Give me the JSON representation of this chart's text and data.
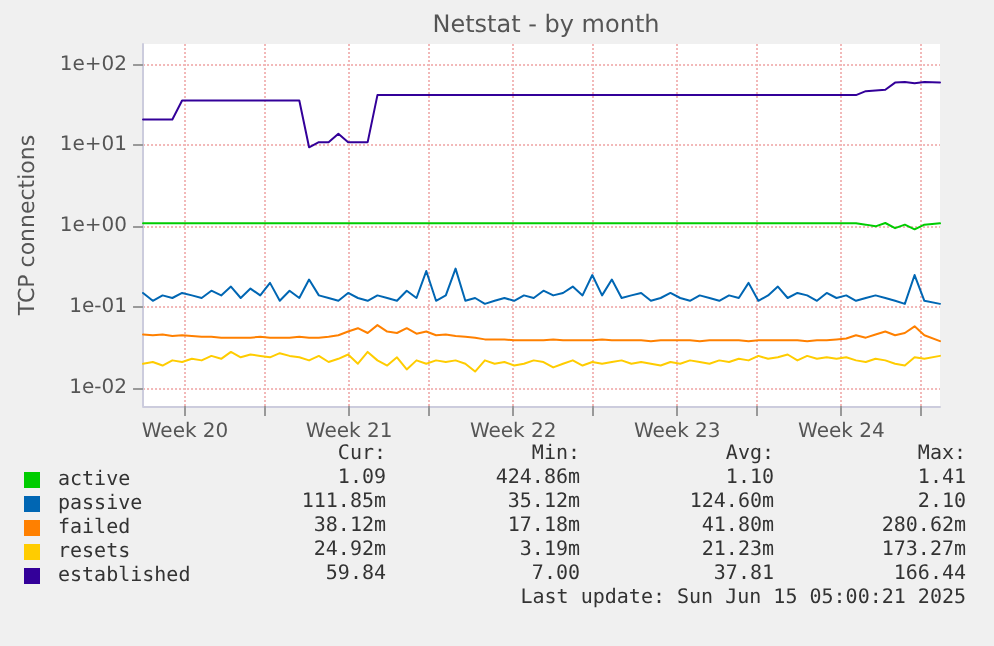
{
  "chart_data": {
    "type": "line",
    "title": "Netstat - by month",
    "ylabel": "TCP connections",
    "log": "y",
    "grid": true,
    "legend": "bottom left",
    "marker": "none",
    "line_style": "solid",
    "xlim": [
      "2025-05-12T05:00",
      "2025-06-15T05:00"
    ],
    "xticks": [
      {
        "value": "2025-05-14",
        "label": "Week 20"
      },
      {
        "value": "2025-05-17T10:00",
        "label": null
      },
      {
        "value": "2025-05-21",
        "label": "Week 21"
      },
      {
        "value": "2025-05-24T10:00",
        "label": null
      },
      {
        "value": "2025-05-28",
        "label": "Week 22"
      },
      {
        "value": "2025-05-31T10:00",
        "label": null
      },
      {
        "value": "2025-06-04",
        "label": "Week 23"
      },
      {
        "value": "2025-06-07T10:00",
        "label": null
      },
      {
        "value": "2025-06-11",
        "label": "Week 24"
      },
      {
        "value": "2025-06-14T10:00",
        "label": null
      }
    ],
    "ylim": [
      0.006,
      180
    ],
    "yticks": [
      {
        "value": 0.01,
        "label": "1e-02"
      },
      {
        "value": 0.1,
        "label": "1e-01"
      },
      {
        "value": 1,
        "label": "1e+00"
      },
      {
        "value": 10,
        "label": "1e+01"
      },
      {
        "value": 100,
        "label": "1e+02"
      }
    ],
    "x": [
      "2025-05-12T05:00",
      "2025-05-12T15:00",
      "2025-05-13T01:00",
      "2025-05-13T11:00",
      "2025-05-13T21:00",
      "2025-05-14T07:00",
      "2025-05-14T17:00",
      "2025-05-15T03:00",
      "2025-05-15T13:00",
      "2025-05-15T23:00",
      "2025-05-16T09:00",
      "2025-05-16T19:00",
      "2025-05-17T05:00",
      "2025-05-17T15:00",
      "2025-05-18T01:00",
      "2025-05-18T11:00",
      "2025-05-18T21:00",
      "2025-05-19T07:00",
      "2025-05-19T17:00",
      "2025-05-20T03:00",
      "2025-05-20T13:00",
      "2025-05-20T23:00",
      "2025-05-21T09:00",
      "2025-05-21T19:00",
      "2025-05-22T05:00",
      "2025-05-22T15:00",
      "2025-05-23T01:00",
      "2025-05-23T11:00",
      "2025-05-23T21:00",
      "2025-05-24T07:00",
      "2025-05-24T17:00",
      "2025-05-25T03:00",
      "2025-05-25T13:00",
      "2025-05-25T23:00",
      "2025-05-26T09:00",
      "2025-05-26T19:00",
      "2025-05-27T05:00",
      "2025-05-27T15:00",
      "2025-05-28T01:00",
      "2025-05-28T11:00",
      "2025-05-28T21:00",
      "2025-05-29T07:00",
      "2025-05-29T17:00",
      "2025-05-30T03:00",
      "2025-05-30T13:00",
      "2025-05-30T23:00",
      "2025-05-31T09:00",
      "2025-05-31T19:00",
      "2025-06-01T05:00",
      "2025-06-01T15:00",
      "2025-06-02T01:00",
      "2025-06-02T11:00",
      "2025-06-02T21:00",
      "2025-06-03T07:00",
      "2025-06-03T17:00",
      "2025-06-04T03:00",
      "2025-06-04T13:00",
      "2025-06-04T23:00",
      "2025-06-05T09:00",
      "2025-06-05T19:00",
      "2025-06-06T05:00",
      "2025-06-06T15:00",
      "2025-06-07T01:00",
      "2025-06-07T11:00",
      "2025-06-07T21:00",
      "2025-06-08T07:00",
      "2025-06-08T17:00",
      "2025-06-09T03:00",
      "2025-06-09T13:00",
      "2025-06-09T23:00",
      "2025-06-10T09:00",
      "2025-06-10T19:00",
      "2025-06-11T05:00",
      "2025-06-11T15:00",
      "2025-06-12T01:00",
      "2025-06-12T11:00",
      "2025-06-12T21:00",
      "2025-06-13T07:00",
      "2025-06-13T17:00",
      "2025-06-14T03:00",
      "2025-06-14T13:00",
      "2025-06-15T05:00"
    ],
    "series": [
      {
        "name": "active",
        "color": "#00cc00",
        "values": [
          1.09,
          1.09,
          1.09,
          1.09,
          1.09,
          1.09,
          1.09,
          1.09,
          1.09,
          1.09,
          1.09,
          1.09,
          1.09,
          1.09,
          1.09,
          1.09,
          1.09,
          1.09,
          1.09,
          1.09,
          1.09,
          1.09,
          1.09,
          1.09,
          1.09,
          1.09,
          1.09,
          1.09,
          1.09,
          1.09,
          1.09,
          1.09,
          1.09,
          1.09,
          1.09,
          1.09,
          1.09,
          1.09,
          1.09,
          1.09,
          1.09,
          1.09,
          1.09,
          1.09,
          1.09,
          1.09,
          1.09,
          1.09,
          1.09,
          1.09,
          1.09,
          1.09,
          1.09,
          1.09,
          1.09,
          1.09,
          1.09,
          1.09,
          1.09,
          1.09,
          1.09,
          1.09,
          1.09,
          1.09,
          1.09,
          1.09,
          1.09,
          1.09,
          1.09,
          1.09,
          1.09,
          1.09,
          1.09,
          1.09,
          1.05,
          1.0,
          1.1,
          0.95,
          1.05,
          0.92,
          1.05,
          1.09
        ]
      },
      {
        "name": "passive",
        "color": "#0066b3",
        "values": [
          0.15,
          0.12,
          0.14,
          0.13,
          0.15,
          0.14,
          0.13,
          0.16,
          0.14,
          0.18,
          0.13,
          0.17,
          0.14,
          0.2,
          0.12,
          0.16,
          0.13,
          0.22,
          0.14,
          0.13,
          0.12,
          0.15,
          0.13,
          0.12,
          0.14,
          0.13,
          0.12,
          0.16,
          0.13,
          0.28,
          0.12,
          0.14,
          0.3,
          0.12,
          0.13,
          0.11,
          0.12,
          0.13,
          0.12,
          0.14,
          0.13,
          0.16,
          0.14,
          0.15,
          0.18,
          0.14,
          0.25,
          0.14,
          0.22,
          0.13,
          0.14,
          0.15,
          0.12,
          0.13,
          0.15,
          0.13,
          0.12,
          0.14,
          0.13,
          0.12,
          0.14,
          0.13,
          0.2,
          0.12,
          0.14,
          0.18,
          0.13,
          0.15,
          0.14,
          0.12,
          0.15,
          0.13,
          0.14,
          0.12,
          0.13,
          0.14,
          0.13,
          0.12,
          0.11,
          0.25,
          0.12,
          0.11
        ]
      },
      {
        "name": "failed",
        "color": "#ff8000",
        "values": [
          0.046,
          0.045,
          0.046,
          0.044,
          0.045,
          0.044,
          0.043,
          0.043,
          0.042,
          0.042,
          0.042,
          0.042,
          0.043,
          0.042,
          0.042,
          0.042,
          0.043,
          0.042,
          0.042,
          0.043,
          0.045,
          0.05,
          0.055,
          0.048,
          0.06,
          0.05,
          0.048,
          0.055,
          0.047,
          0.05,
          0.045,
          0.046,
          0.044,
          0.043,
          0.042,
          0.04,
          0.04,
          0.04,
          0.039,
          0.039,
          0.039,
          0.039,
          0.04,
          0.039,
          0.039,
          0.039,
          0.039,
          0.04,
          0.039,
          0.039,
          0.039,
          0.039,
          0.038,
          0.039,
          0.039,
          0.039,
          0.039,
          0.038,
          0.039,
          0.039,
          0.039,
          0.039,
          0.038,
          0.039,
          0.039,
          0.039,
          0.039,
          0.039,
          0.038,
          0.039,
          0.039,
          0.04,
          0.041,
          0.045,
          0.042,
          0.046,
          0.05,
          0.045,
          0.048,
          0.058,
          0.045,
          0.038
        ]
      },
      {
        "name": "resets",
        "color": "#ffcc00",
        "values": [
          0.02,
          0.021,
          0.019,
          0.022,
          0.021,
          0.023,
          0.022,
          0.025,
          0.023,
          0.028,
          0.024,
          0.026,
          0.025,
          0.024,
          0.027,
          0.025,
          0.024,
          0.022,
          0.025,
          0.021,
          0.023,
          0.026,
          0.02,
          0.028,
          0.022,
          0.019,
          0.024,
          0.017,
          0.022,
          0.02,
          0.022,
          0.021,
          0.022,
          0.02,
          0.016,
          0.022,
          0.02,
          0.021,
          0.019,
          0.02,
          0.022,
          0.021,
          0.018,
          0.02,
          0.022,
          0.019,
          0.021,
          0.02,
          0.021,
          0.022,
          0.02,
          0.021,
          0.02,
          0.019,
          0.021,
          0.02,
          0.022,
          0.021,
          0.02,
          0.022,
          0.021,
          0.023,
          0.022,
          0.025,
          0.023,
          0.024,
          0.026,
          0.022,
          0.025,
          0.023,
          0.024,
          0.023,
          0.024,
          0.022,
          0.021,
          0.023,
          0.022,
          0.02,
          0.019,
          0.024,
          0.023,
          0.025
        ]
      },
      {
        "name": "established",
        "color": "#330099",
        "values": [
          21,
          21,
          21,
          21,
          36,
          36,
          36,
          36,
          36,
          36,
          36,
          36,
          36,
          36,
          36,
          36,
          36,
          9.5,
          11,
          11,
          14,
          11,
          11,
          11,
          42,
          42,
          42,
          42,
          42,
          42,
          42,
          42,
          42,
          42,
          42,
          42,
          42,
          42,
          42,
          42,
          42,
          42,
          42,
          42,
          42,
          42,
          42,
          42,
          42,
          42,
          42,
          42,
          42,
          42,
          42,
          42,
          42,
          42,
          42,
          42,
          42,
          42,
          42,
          42,
          42,
          42,
          42,
          42,
          42,
          42,
          42,
          42,
          42,
          42,
          47,
          48,
          49,
          60,
          61,
          59,
          61,
          60
        ]
      }
    ],
    "annotations": [
      "Cur:",
      "Min:",
      "Avg:",
      "Max:",
      "1.09",
      "424.86m",
      "1.10",
      "1.41",
      "111.85m",
      "35.12m",
      "124.60m",
      "2.10",
      "38.12m",
      "17.18m",
      "41.80m",
      "280.62m",
      "24.92m",
      "3.19m",
      "21.23m",
      "173.27m",
      "59.84",
      "7.00",
      "37.81",
      "166.44",
      "Last update: Sun Jun 15 05:00:21 2025"
    ]
  }
}
